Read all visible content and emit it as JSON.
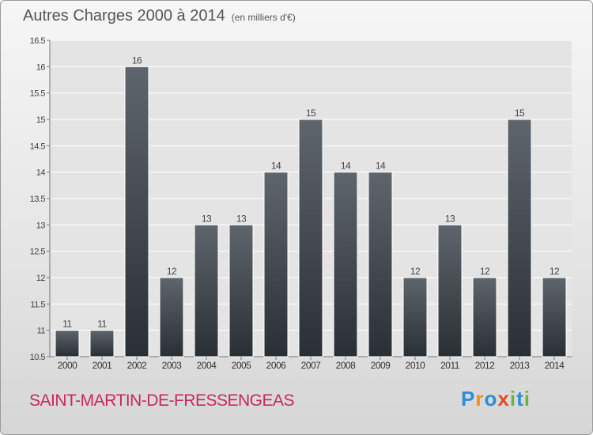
{
  "header": {
    "title": "Autres Charges 2000 à 2014",
    "unit": "(en milliers d'€)"
  },
  "footer": {
    "commune": "SAINT-MARTIN-DE-FRESSENGEAS"
  },
  "logo": {
    "letters": [
      "P",
      "r",
      "o",
      "x",
      "i",
      "t",
      "i"
    ],
    "colors": [
      "#2a8fd6",
      "#e8902a",
      "#2a8fd6",
      "#e04a2a",
      "#6cb43c",
      "#2a8fd6",
      "#6cb43c"
    ]
  },
  "chart_data": {
    "type": "bar",
    "categories": [
      "2000",
      "2001",
      "2002",
      "2003",
      "2004",
      "2005",
      "2006",
      "2007",
      "2008",
      "2009",
      "2010",
      "2011",
      "2012",
      "2013",
      "2014"
    ],
    "values": [
      11,
      11,
      16,
      12,
      13,
      13,
      14,
      15,
      14,
      14,
      12,
      13,
      12,
      15,
      12
    ],
    "data_labels": [
      "11",
      "11",
      "16",
      "12",
      "13",
      "13",
      "14",
      "15",
      "14",
      "14",
      "12",
      "13",
      "12",
      "15",
      "12"
    ],
    "ylim": [
      10.5,
      16.5
    ],
    "yticks": [
      10.5,
      11,
      11.5,
      12,
      12.5,
      13,
      13.5,
      14,
      14.5,
      15,
      15.5,
      16,
      16.5
    ],
    "ytick_labels": [
      "10.5",
      "11",
      "11.5",
      "12",
      "12.5",
      "13",
      "13.5",
      "14",
      "14.5",
      "15",
      "15.5",
      "16",
      "16.5"
    ],
    "grid": true,
    "bar_color": "#3d434a"
  }
}
